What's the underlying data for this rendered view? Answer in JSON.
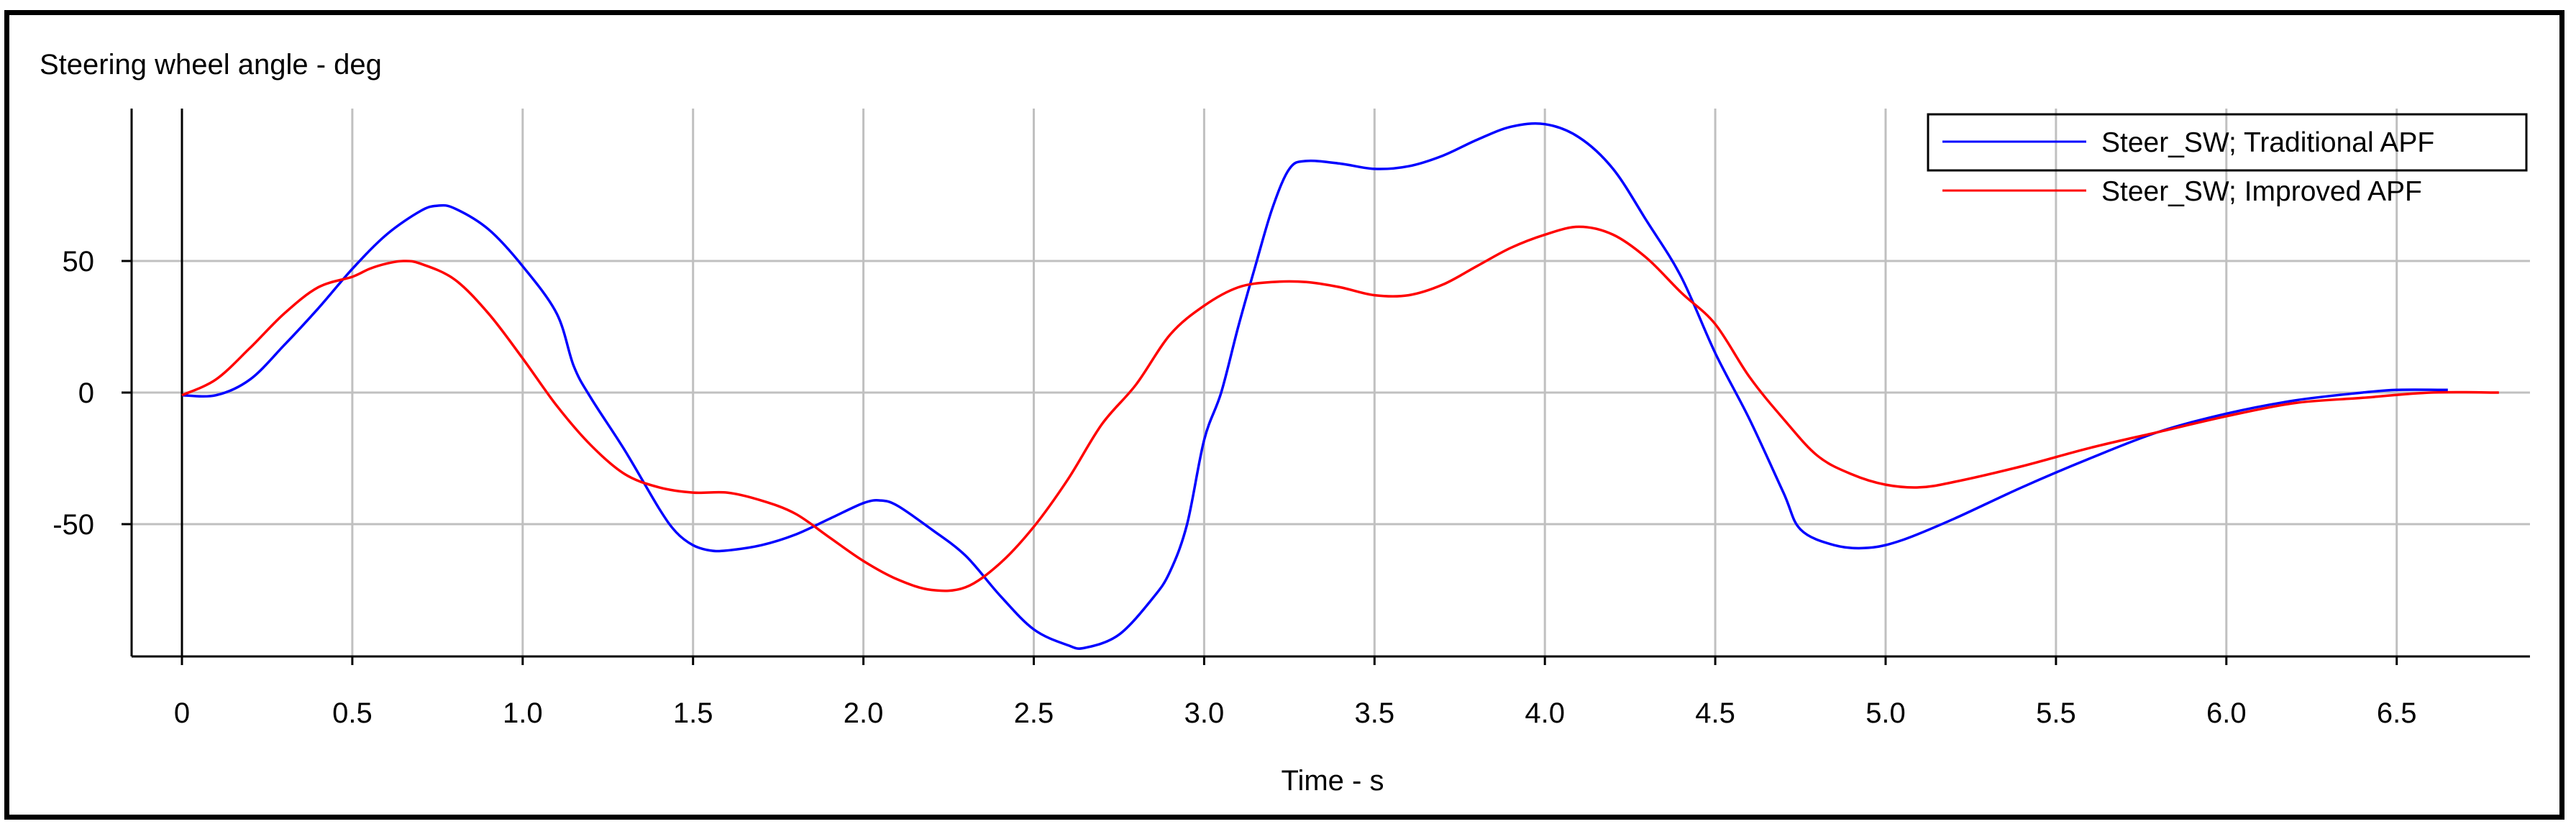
{
  "chart_data": {
    "type": "line",
    "title": "Steering wheel angle - deg",
    "xlabel": "Time - s",
    "ylabel": "",
    "xlim": [
      0,
      6.85
    ],
    "ylim": [
      -102,
      105
    ],
    "x_ticks": [
      0,
      0.5,
      1.0,
      1.5,
      2.0,
      2.5,
      3.0,
      3.5,
      4.0,
      4.5,
      5.0,
      5.5,
      6.0,
      6.5
    ],
    "x_tick_labels": [
      "0",
      "0.5",
      "1.0",
      "1.5",
      "2.0",
      "2.5",
      "3.0",
      "3.5",
      "4.0",
      "4.5",
      "5.0",
      "5.5",
      "6.0",
      "6.5"
    ],
    "y_ticks": [
      50,
      0,
      -50
    ],
    "y_tick_labels": [
      "50",
      "0",
      "-50"
    ],
    "grid": true,
    "legend_position": "top-right",
    "series": [
      {
        "name": "Steer_SW; Traditional APF",
        "color": "#0000ff",
        "points": [
          [
            0,
            -1
          ],
          [
            0.1,
            -1
          ],
          [
            0.2,
            5
          ],
          [
            0.3,
            18
          ],
          [
            0.4,
            32
          ],
          [
            0.5,
            47
          ],
          [
            0.6,
            60
          ],
          [
            0.7,
            69
          ],
          [
            0.75,
            71
          ],
          [
            0.8,
            70
          ],
          [
            0.9,
            62
          ],
          [
            1.0,
            48
          ],
          [
            1.1,
            30
          ],
          [
            1.15,
            10
          ],
          [
            1.2,
            -2
          ],
          [
            1.3,
            -22
          ],
          [
            1.4,
            -44
          ],
          [
            1.45,
            -53
          ],
          [
            1.5,
            -58
          ],
          [
            1.55,
            -60
          ],
          [
            1.6,
            -60
          ],
          [
            1.7,
            -58
          ],
          [
            1.8,
            -54
          ],
          [
            1.9,
            -48
          ],
          [
            2.0,
            -42
          ],
          [
            2.05,
            -41
          ],
          [
            2.1,
            -43
          ],
          [
            2.2,
            -52
          ],
          [
            2.3,
            -62
          ],
          [
            2.4,
            -77
          ],
          [
            2.5,
            -90
          ],
          [
            2.6,
            -96
          ],
          [
            2.65,
            -97
          ],
          [
            2.75,
            -92
          ],
          [
            2.85,
            -78
          ],
          [
            2.9,
            -68
          ],
          [
            2.95,
            -50
          ],
          [
            3.0,
            -18
          ],
          [
            3.05,
            0
          ],
          [
            3.1,
            25
          ],
          [
            3.15,
            48
          ],
          [
            3.2,
            70
          ],
          [
            3.25,
            85
          ],
          [
            3.3,
            88
          ],
          [
            3.4,
            87
          ],
          [
            3.5,
            85
          ],
          [
            3.6,
            86
          ],
          [
            3.7,
            90
          ],
          [
            3.8,
            96
          ],
          [
            3.9,
            101
          ],
          [
            4.0,
            102
          ],
          [
            4.1,
            97
          ],
          [
            4.2,
            85
          ],
          [
            4.3,
            65
          ],
          [
            4.4,
            44
          ],
          [
            4.5,
            15
          ],
          [
            4.6,
            -10
          ],
          [
            4.7,
            -38
          ],
          [
            4.75,
            -52
          ],
          [
            4.85,
            -58
          ],
          [
            4.95,
            -59
          ],
          [
            5.05,
            -56
          ],
          [
            5.2,
            -48
          ],
          [
            5.4,
            -36
          ],
          [
            5.6,
            -25
          ],
          [
            5.8,
            -15
          ],
          [
            6.0,
            -8
          ],
          [
            6.2,
            -3
          ],
          [
            6.4,
            0
          ],
          [
            6.5,
            1
          ],
          [
            6.65,
            1
          ]
        ]
      },
      {
        "name": "Steer_SW; Improved APF",
        "color": "#ff0000",
        "points": [
          [
            0,
            -1
          ],
          [
            0.1,
            5
          ],
          [
            0.2,
            17
          ],
          [
            0.3,
            30
          ],
          [
            0.4,
            40
          ],
          [
            0.5,
            44
          ],
          [
            0.55,
            47
          ],
          [
            0.6,
            49
          ],
          [
            0.65,
            50
          ],
          [
            0.7,
            49
          ],
          [
            0.8,
            43
          ],
          [
            0.9,
            30
          ],
          [
            1.0,
            13
          ],
          [
            1.1,
            -5
          ],
          [
            1.2,
            -20
          ],
          [
            1.3,
            -31
          ],
          [
            1.4,
            -36
          ],
          [
            1.5,
            -38
          ],
          [
            1.6,
            -38
          ],
          [
            1.7,
            -41
          ],
          [
            1.8,
            -46
          ],
          [
            1.9,
            -55
          ],
          [
            2.0,
            -64
          ],
          [
            2.1,
            -71
          ],
          [
            2.2,
            -75
          ],
          [
            2.3,
            -74
          ],
          [
            2.4,
            -65
          ],
          [
            2.5,
            -51
          ],
          [
            2.6,
            -33
          ],
          [
            2.7,
            -12
          ],
          [
            2.8,
            3
          ],
          [
            2.9,
            22
          ],
          [
            3.0,
            33
          ],
          [
            3.1,
            40
          ],
          [
            3.2,
            42
          ],
          [
            3.3,
            42
          ],
          [
            3.4,
            40
          ],
          [
            3.5,
            37
          ],
          [
            3.6,
            37
          ],
          [
            3.7,
            41
          ],
          [
            3.8,
            48
          ],
          [
            3.9,
            55
          ],
          [
            4.0,
            60
          ],
          [
            4.1,
            63
          ],
          [
            4.2,
            60
          ],
          [
            4.3,
            51
          ],
          [
            4.4,
            38
          ],
          [
            4.5,
            26
          ],
          [
            4.6,
            6
          ],
          [
            4.7,
            -10
          ],
          [
            4.8,
            -24
          ],
          [
            4.9,
            -31
          ],
          [
            5.0,
            -35
          ],
          [
            5.1,
            -36
          ],
          [
            5.2,
            -34
          ],
          [
            5.4,
            -28
          ],
          [
            5.6,
            -21
          ],
          [
            5.8,
            -15
          ],
          [
            6.0,
            -9
          ],
          [
            6.2,
            -4
          ],
          [
            6.4,
            -2
          ],
          [
            6.6,
            0
          ],
          [
            6.8,
            0
          ]
        ]
      }
    ]
  }
}
